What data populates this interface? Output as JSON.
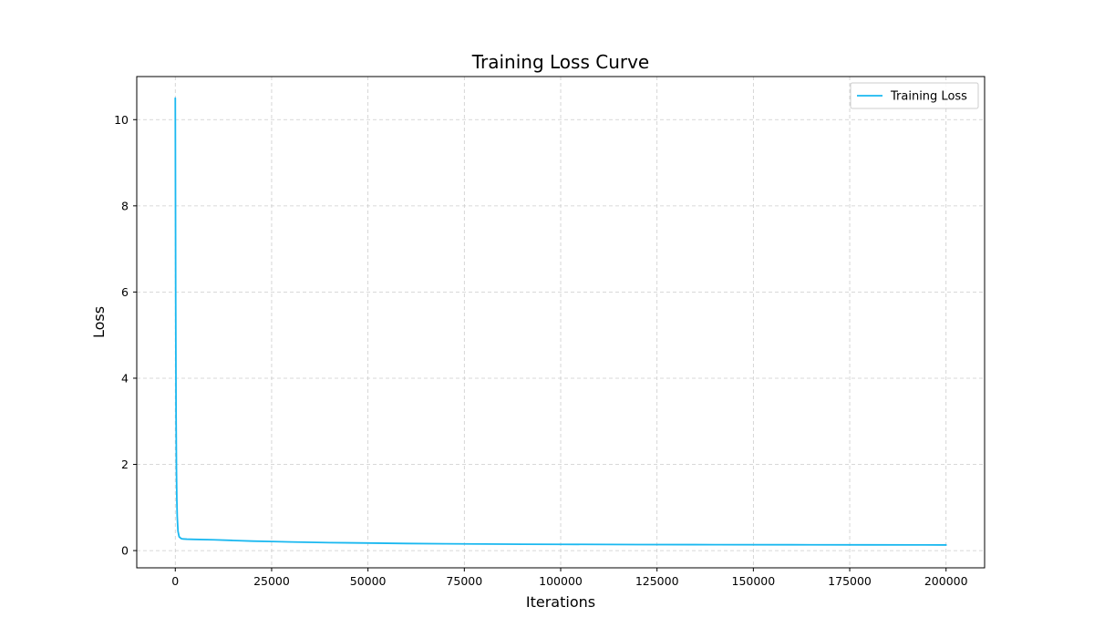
{
  "chart_data": {
    "type": "line",
    "title": "Training Loss Curve",
    "xlabel": "Iterations",
    "ylabel": "Loss",
    "xlim": [
      -10000,
      210000
    ],
    "ylim": [
      -0.4,
      11.0
    ],
    "x_ticks": [
      0,
      25000,
      50000,
      75000,
      100000,
      125000,
      150000,
      175000,
      200000
    ],
    "y_ticks": [
      0,
      2,
      4,
      6,
      8,
      10
    ],
    "grid": true,
    "legend_position": "top-right",
    "series": [
      {
        "name": "Training Loss",
        "color": "#1ab8f0",
        "x": [
          0,
          100,
          200,
          300,
          400,
          500,
          700,
          1000,
          1500,
          2000,
          3000,
          5000,
          10000,
          15000,
          20000,
          25000,
          30000,
          40000,
          50000,
          60000,
          70000,
          80000,
          90000,
          100000,
          120000,
          140000,
          160000,
          180000,
          200000
        ],
        "y": [
          10.5,
          6.0,
          3.2,
          1.9,
          1.2,
          0.8,
          0.45,
          0.32,
          0.28,
          0.27,
          0.265,
          0.26,
          0.25,
          0.235,
          0.22,
          0.21,
          0.2,
          0.185,
          0.175,
          0.165,
          0.158,
          0.152,
          0.148,
          0.145,
          0.14,
          0.137,
          0.135,
          0.133,
          0.13
        ]
      }
    ]
  }
}
